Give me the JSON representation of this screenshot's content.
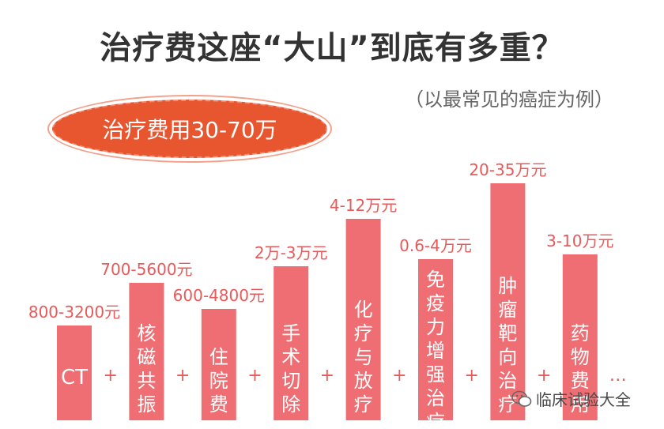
{
  "title": "治疗费这座“大山”到底有多重？",
  "subtitle": "（以最常见的癌症为例）",
  "oval_label": "治疗费用30-70万",
  "watermark": "临床试验大全",
  "colors": {
    "bar": "#ee6e73",
    "bar_text": "#ffffff",
    "value_text": "#e85a5a",
    "plus": "#e85a5a",
    "oval": "#e8562f"
  },
  "chart_data": {
    "type": "bar",
    "categories": [
      "CT",
      "核磁共振",
      "住院费",
      "手术切除",
      "化疗与放疗",
      "免疫力增强治疗",
      "肿瘤靶向治疗",
      "药物费用"
    ],
    "bar_labels": [
      "CT",
      "核磁\n共振",
      "住院\n费",
      "手术\n切除",
      "化疗\n与放\n疗",
      "免疫\n力增\n强治\n疗",
      "肿瘤\n靶向\n治疗",
      "药物\n费用"
    ],
    "value_labels": [
      "800-3200元",
      "700-5600元",
      "600-4800元",
      "2万-3万元",
      "4-12万元",
      "0.6-4万元",
      "20-35万元",
      "3-10万元"
    ],
    "relative_heights": [
      0.4,
      0.58,
      0.47,
      0.65,
      0.85,
      0.68,
      1.0,
      0.7
    ],
    "separator": "+",
    "trailing": "…",
    "xlabel": "",
    "ylabel": ""
  }
}
